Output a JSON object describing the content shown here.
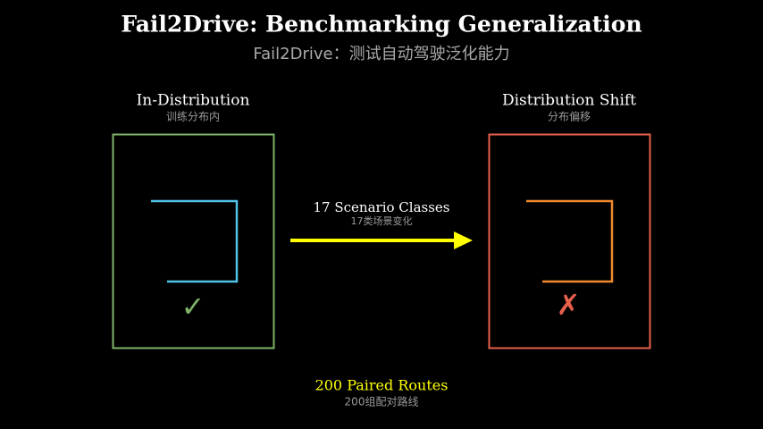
{
  "header": {
    "title": "Fail2Drive: Benchmarking Generalization",
    "subtitle": "Fail2Drive：测试自动驾驶泛化能力"
  },
  "left_panel": {
    "title": "In-Distribution",
    "subtitle": "训练分布内",
    "mark": "✓"
  },
  "right_panel": {
    "title": "Distribution Shift",
    "subtitle": "分布偏移",
    "mark": "✗"
  },
  "arrow": {
    "label": "17 Scenario Classes",
    "sublabel": "17类场景变化"
  },
  "footer": {
    "label": "200 Paired Routes",
    "sublabel": "200组配对路线"
  }
}
